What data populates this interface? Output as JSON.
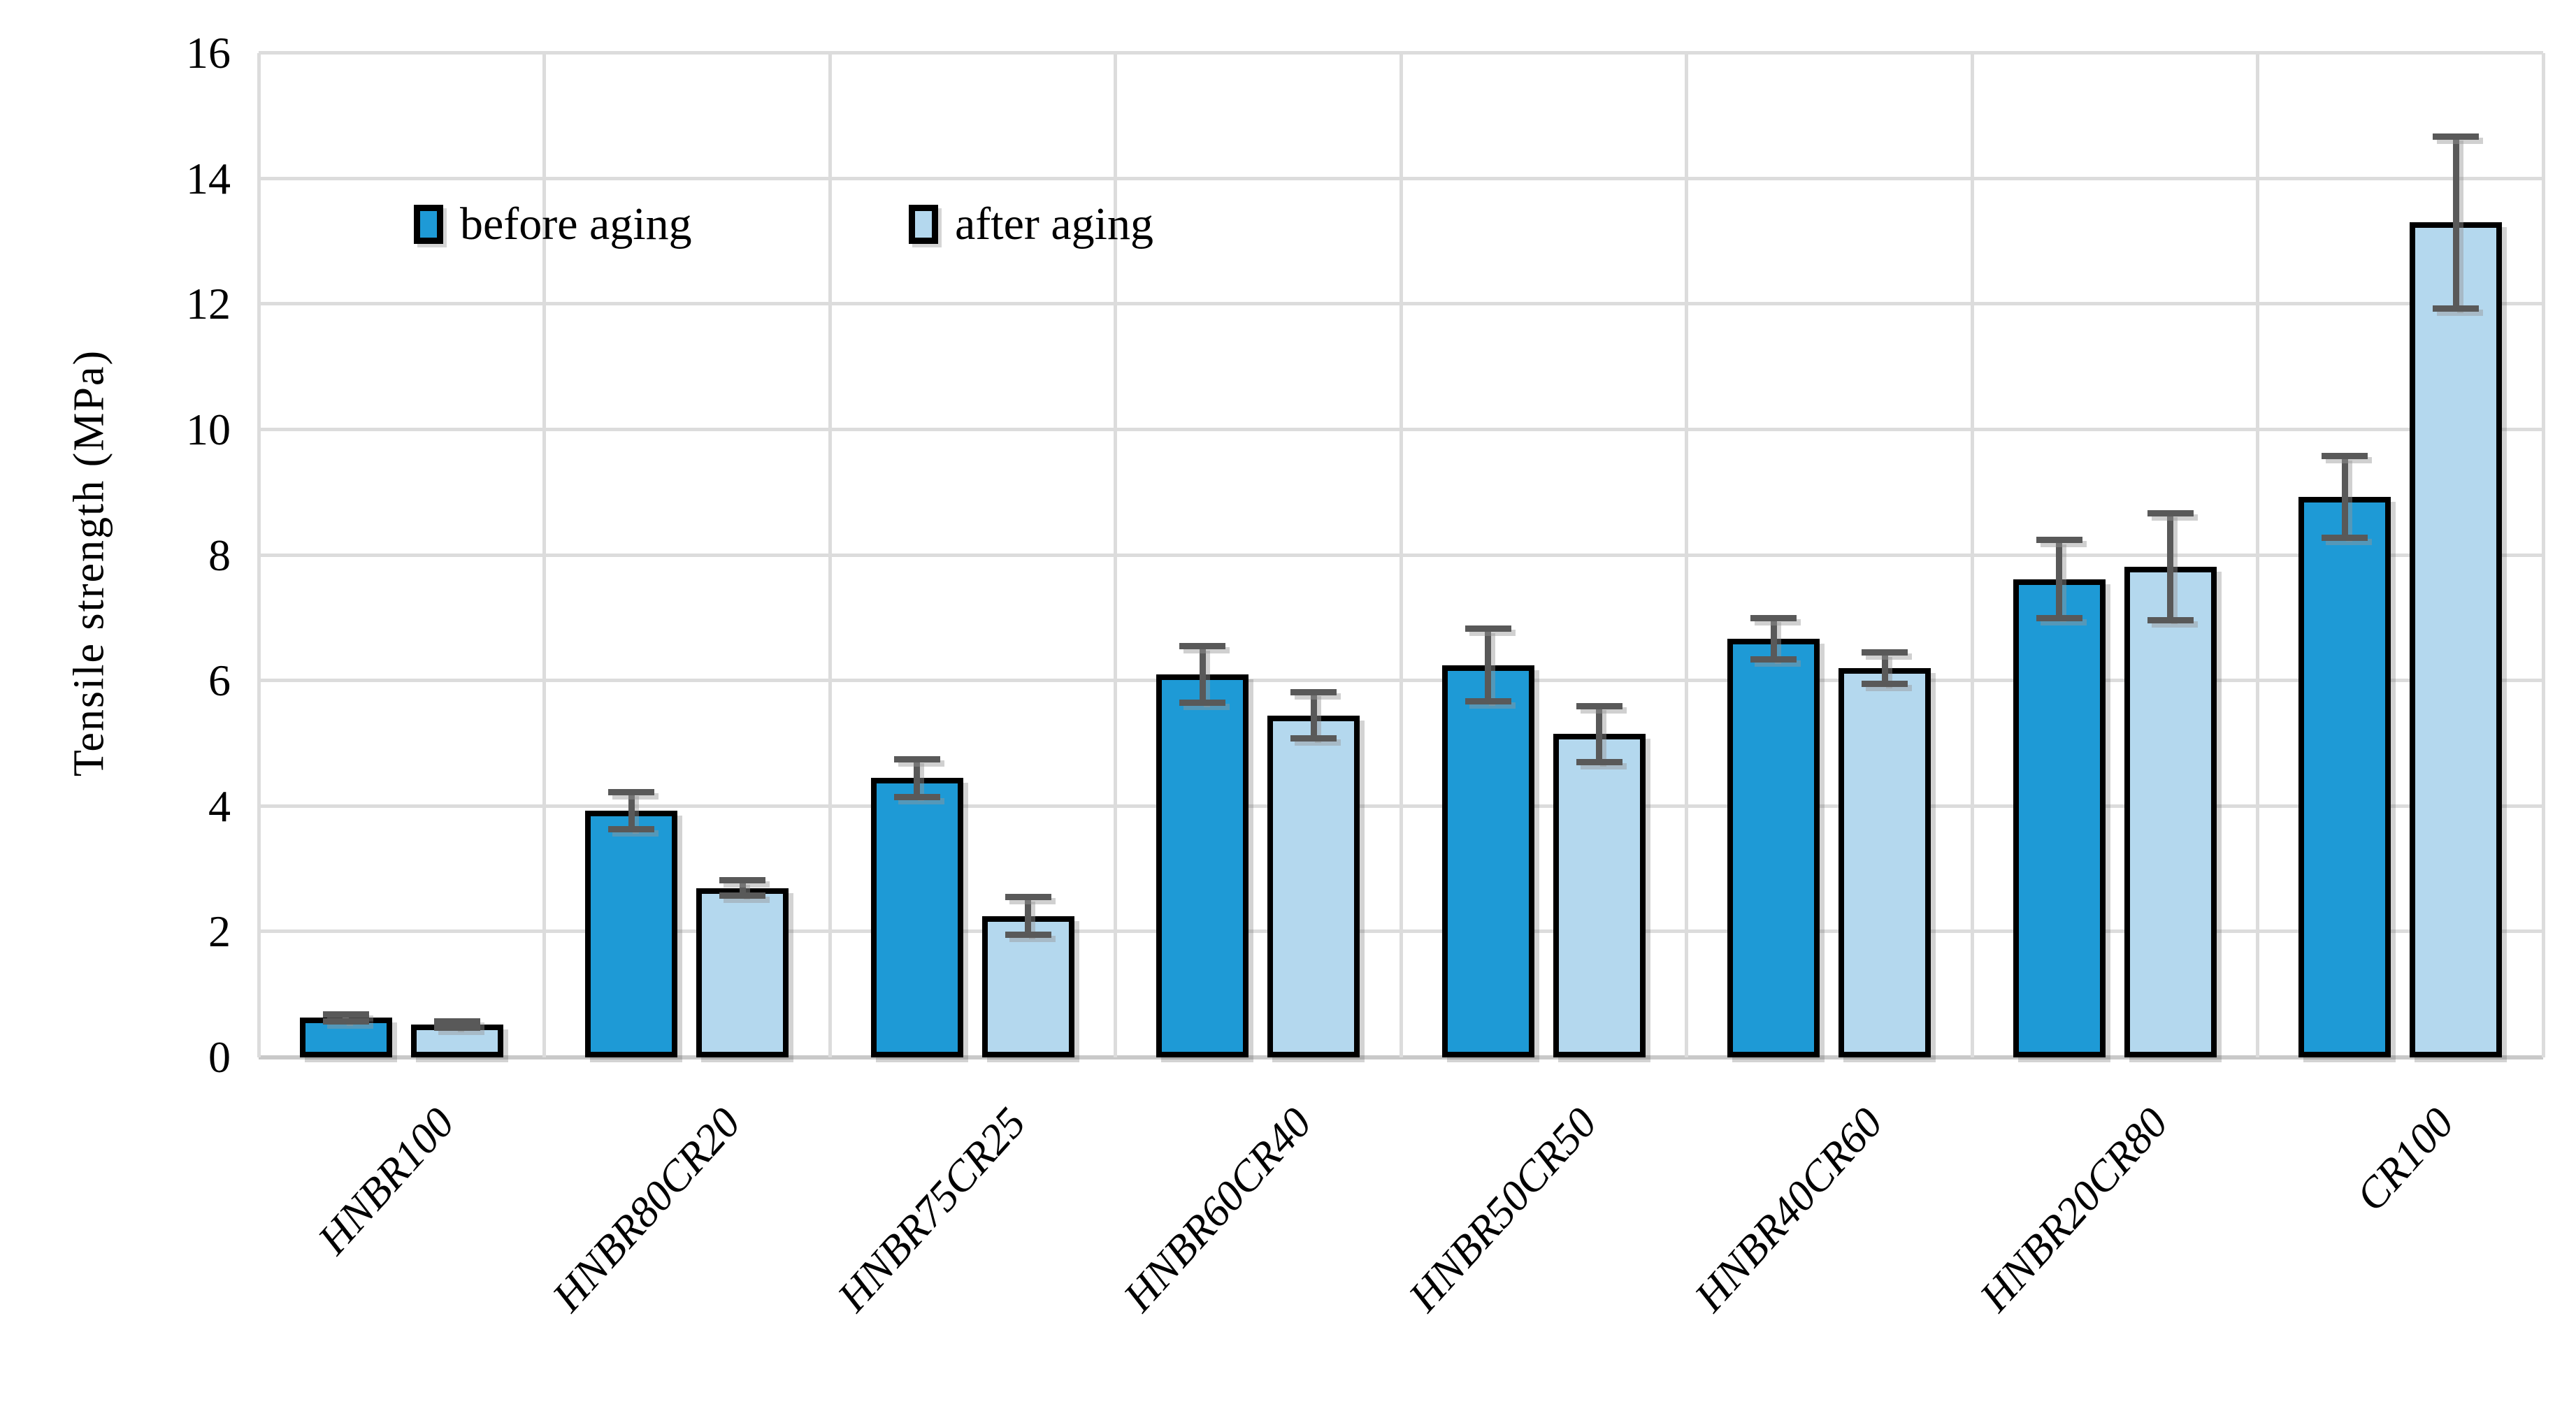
{
  "chart_data": {
    "type": "bar",
    "title": "",
    "xlabel": "",
    "ylabel": "Tensile strength (MPa)",
    "ylim": [
      0,
      16
    ],
    "ytick_step": 2,
    "ytick_labels": [
      "0",
      "2",
      "4",
      "6",
      "8",
      "10",
      "12",
      "14",
      "16"
    ],
    "grid": "horizontal gridlines every 2 MPa plus vertical category-boundary lines",
    "legend_position": "top-left inside plot",
    "categories": [
      "HNBR100",
      "HNBR80CR20",
      "HNBR75CR25",
      "HNBR60CR40",
      "HNBR50CR50",
      "HNBR40CR60",
      "HNBR20CR80",
      "CR100"
    ],
    "series": [
      {
        "name": "before aging",
        "color": "#1E9AD6",
        "values": [
          0.63,
          3.93,
          4.45,
          6.1,
          6.25,
          6.67,
          7.62,
          8.93
        ],
        "errors": [
          0.06,
          0.3,
          0.3,
          0.45,
          0.58,
          0.33,
          0.62,
          0.65
        ]
      },
      {
        "name": "after aging",
        "color": "#B4D8EE",
        "values": [
          0.52,
          2.7,
          2.25,
          5.45,
          5.15,
          6.2,
          7.82,
          13.3
        ],
        "errors": [
          0.05,
          0.12,
          0.3,
          0.37,
          0.45,
          0.25,
          0.85,
          1.37
        ]
      }
    ],
    "bar_border_color": "#000000",
    "error_bar_color": "#595959",
    "gridline_color": "#DCDCDC",
    "axis_line_color": "#C9C9C9",
    "background_color": "#FFFFFF"
  }
}
